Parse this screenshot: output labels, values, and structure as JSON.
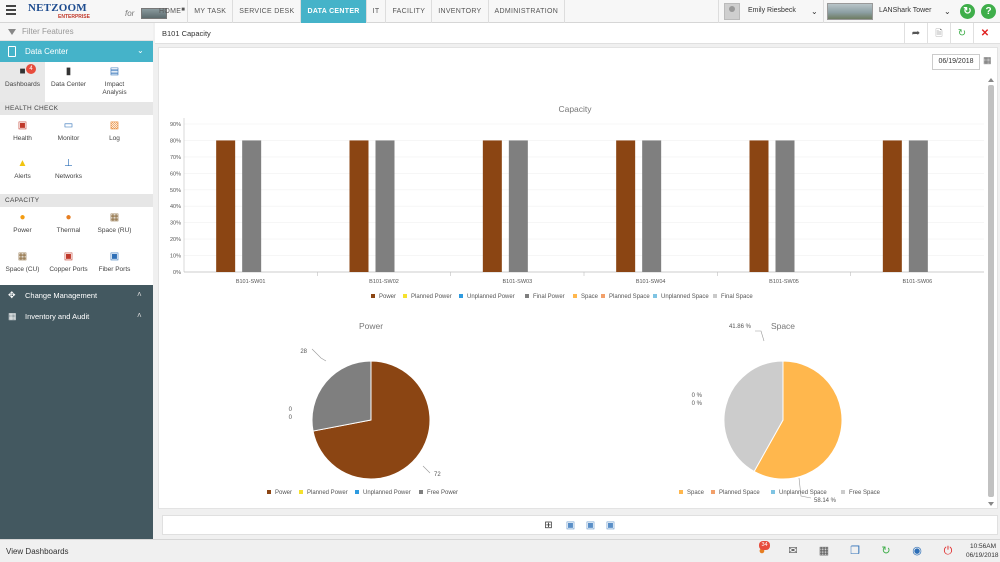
{
  "app": {
    "logo_main": "NETZOOM",
    "logo_sub": "ENTERPRISE",
    "logo_for": "for"
  },
  "nav": {
    "items": [
      {
        "label": "HOME"
      },
      {
        "label": "MY TASK"
      },
      {
        "label": "SERVICE DESK"
      },
      {
        "label": "DATA CENTER",
        "active": true
      },
      {
        "label": "IT"
      },
      {
        "label": "FACILITY"
      },
      {
        "label": "INVENTORY"
      },
      {
        "label": "ADMINISTRATION"
      }
    ]
  },
  "user": {
    "name": "Emily Riesbeck"
  },
  "site": {
    "name": "LANShark Tower"
  },
  "sidebar": {
    "filter_placeholder": "Filter Features",
    "section_title": "Data Center",
    "top_tiles": [
      {
        "label": "Dashboards",
        "icon": "dashboards-icon",
        "badge": "4"
      },
      {
        "label": "Data Center",
        "icon": "data-center-icon"
      },
      {
        "label": "Impact Analysis",
        "icon": "impact-analysis-icon"
      }
    ],
    "health_check_title": "HEALTH CHECK",
    "health_tiles": [
      {
        "label": "Health",
        "icon": "health-icon"
      },
      {
        "label": "Monitor",
        "icon": "monitor-icon"
      },
      {
        "label": "Log",
        "icon": "log-icon"
      },
      {
        "label": "Alerts",
        "icon": "alerts-icon"
      },
      {
        "label": "Networks",
        "icon": "networks-icon"
      }
    ],
    "capacity_title": "CAPACITY",
    "capacity_tiles": [
      {
        "label": "Power",
        "icon": "power-icon"
      },
      {
        "label": "Thermal",
        "icon": "thermal-icon"
      },
      {
        "label": "Space (RU)",
        "icon": "space-ru-icon"
      },
      {
        "label": "Space (CU)",
        "icon": "space-cu-icon"
      },
      {
        "label": "Copper Ports",
        "icon": "copper-ports-icon"
      },
      {
        "label": "Fiber Ports",
        "icon": "fiber-ports-icon"
      }
    ],
    "change_management": "Change Management",
    "inventory_audit": "Inventory and Audit"
  },
  "page": {
    "title": "B101 Capacity",
    "date": "06/19/2018"
  },
  "colors": {
    "accent": "#45b3c9",
    "power": "#8b4513",
    "planned_power": "#f5e12e",
    "unplanned_power": "#2e9be0",
    "final_power": "#7f7f7f",
    "space": "#ffb74d",
    "planned_space": "#f2a06a",
    "unplanned_space": "#7fc4e3",
    "final_space": "#c9c9c9",
    "free_space": "#cccccc"
  },
  "chart_data": [
    {
      "type": "bar",
      "title": "Capacity",
      "categories": [
        "B101-SW01",
        "B101-SW02",
        "B101-SW03",
        "B101-SW04",
        "B101-SW05",
        "B101-SW06"
      ],
      "series": [
        {
          "name": "Power",
          "values": [
            80,
            80,
            80,
            80,
            80,
            80
          ]
        },
        {
          "name": "Planned Power",
          "values": [
            0,
            0,
            0,
            0,
            0,
            0
          ]
        },
        {
          "name": "Unplanned Power",
          "values": [
            0,
            0,
            0,
            0,
            0,
            0
          ]
        },
        {
          "name": "Final Power",
          "values": [
            80,
            80,
            80,
            80,
            80,
            80
          ]
        },
        {
          "name": "Space",
          "values": [
            0,
            0,
            0,
            0,
            0,
            0
          ]
        },
        {
          "name": "Planned Space",
          "values": [
            0,
            0,
            0,
            0,
            0,
            0
          ]
        },
        {
          "name": "Unplanned Space",
          "values": [
            0,
            0,
            0,
            0,
            0,
            0
          ]
        },
        {
          "name": "Final Space",
          "values": [
            0,
            0,
            0,
            0,
            0,
            0
          ]
        }
      ],
      "ylim": [
        0,
        90
      ],
      "yticks": [
        "0%",
        "10%",
        "20%",
        "30%",
        "40%",
        "50%",
        "60%",
        "70%",
        "80%",
        "90%"
      ],
      "legend": "bottom"
    },
    {
      "type": "pie",
      "title": "Power",
      "slices": [
        {
          "name": "Power",
          "value": 72,
          "label": "72"
        },
        {
          "name": "Planned Power",
          "value": 0,
          "label": "0"
        },
        {
          "name": "Unplanned Power",
          "value": 0,
          "label": "0"
        },
        {
          "name": "Free Power",
          "value": 28,
          "label": "28"
        }
      ],
      "legend": "bottom"
    },
    {
      "type": "pie",
      "title": "Space",
      "slices": [
        {
          "name": "Space",
          "value": 58.14,
          "label": "58.14 %"
        },
        {
          "name": "Planned Space",
          "value": 0,
          "label": "0 %"
        },
        {
          "name": "Unplanned Space",
          "value": 0,
          "label": "0 %"
        },
        {
          "name": "Free Space",
          "value": 41.86,
          "label": "41.86 %"
        }
      ],
      "legend": "bottom"
    }
  ],
  "status": {
    "text": "View Dashboards",
    "badge": "34",
    "time": "10:56AM",
    "date": "06/19/2018"
  }
}
